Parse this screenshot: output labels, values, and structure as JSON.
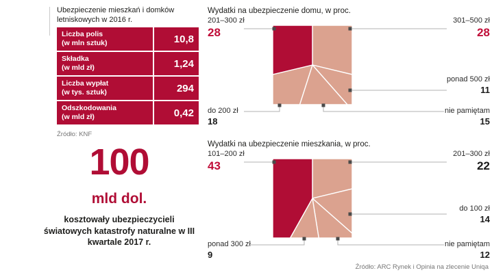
{
  "left_panel": {
    "title": "Ubezpieczenie mieszkań i domków letniskowych w 2016 r.",
    "table": {
      "rows": [
        {
          "label": "Liczba polis",
          "unit": "(w mln sztuk)",
          "value": "10,8"
        },
        {
          "label": "Składka",
          "unit": "(w mld zł)",
          "value": "1,24"
        },
        {
          "label": "Liczba wypłat",
          "unit": "(w tys. sztuk)",
          "value": "294"
        },
        {
          "label": "Odszkodowania",
          "unit": "(w mld zł)",
          "value": "0,42"
        }
      ]
    },
    "source": "Źródło: KNF",
    "highlight": {
      "number": "100",
      "unit": "mld dol.",
      "caption": "kosztowały ubezpieczycieli światowych katastrofy naturalne w III kwartale 2017 r."
    }
  },
  "source_right": "Źródło: ARC Rynek i Opinia na zlecenie Uniqa",
  "colors": {
    "primary": "#b00d35",
    "wedge_dark": "#b00d35",
    "wedge_light": "#dba28f",
    "highlight_value": "#c00d38",
    "connector": "#b0b0b0",
    "marker": "#4a4a4a"
  },
  "chart_data": [
    {
      "type": "pie",
      "variant": "square-pie",
      "title": "Wydatki na ubezpieczenie domu, w proc.",
      "unit": "proc.",
      "slices": [
        {
          "label": "301–500 zł",
          "value": 28,
          "color": "light",
          "position": "top-right",
          "highlight": true
        },
        {
          "label": "ponad 500 zł",
          "value": 11,
          "color": "light",
          "position": "right",
          "highlight": false
        },
        {
          "label": "nie pamiętam",
          "value": 15,
          "color": "light",
          "position": "bottom-right",
          "highlight": false
        },
        {
          "label": "do 200 zł",
          "value": 18,
          "color": "light",
          "position": "bottom-left",
          "highlight": false
        },
        {
          "label": "201–300 zł",
          "value": 28,
          "color": "dark",
          "position": "top-left",
          "highlight": true
        }
      ]
    },
    {
      "type": "pie",
      "variant": "square-pie",
      "title": "Wydatki na ubezpieczenie mieszkania, w proc.",
      "unit": "proc.",
      "slices": [
        {
          "label": "201–300 zł",
          "value": 22,
          "color": "light",
          "position": "top-right",
          "highlight": false
        },
        {
          "label": "do 100 zł",
          "value": 14,
          "color": "light",
          "position": "right",
          "highlight": false
        },
        {
          "label": "nie pamiętam",
          "value": 12,
          "color": "light",
          "position": "bottom-right",
          "highlight": false
        },
        {
          "label": "ponad 300 zł",
          "value": 9,
          "color": "light",
          "position": "bottom-left",
          "highlight": false
        },
        {
          "label": "101–200 zł",
          "value": 43,
          "color": "dark",
          "position": "top-left",
          "highlight": true
        }
      ]
    }
  ]
}
